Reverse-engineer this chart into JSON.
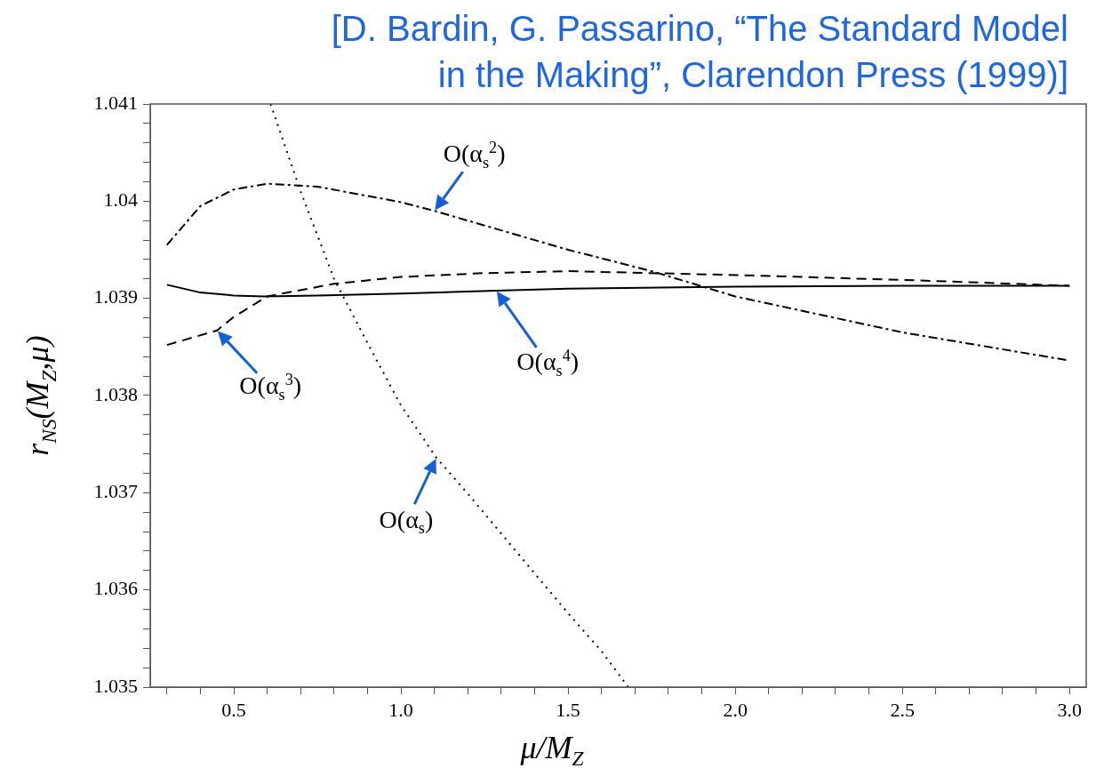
{
  "chart_data": {
    "type": "line",
    "title": "[D. Bardin, G. Passarino, “The Standard Model in the Making”, Clarendon Press (1999)]",
    "xlabel": "μ/M$_{Z}$",
    "ylabel": "r$_{NS}$(M$_{Z}$,μ)",
    "xlim": [
      0.25,
      3.05
    ],
    "ylim": [
      1.035,
      1.041
    ],
    "xticks": [
      {
        "value": 0.3,
        "label": null
      },
      {
        "value": 0.4,
        "label": null
      },
      {
        "value": 0.5,
        "label": "0.5"
      },
      {
        "value": 0.6,
        "label": null
      },
      {
        "value": 0.7,
        "label": null
      },
      {
        "value": 0.8,
        "label": null
      },
      {
        "value": 0.9,
        "label": null
      },
      {
        "value": 1,
        "label": "1.0"
      },
      {
        "value": 1.1,
        "label": null
      },
      {
        "value": 1.2,
        "label": null
      },
      {
        "value": 1.3,
        "label": null
      },
      {
        "value": 1.4,
        "label": null
      },
      {
        "value": 1.5,
        "label": "1.5"
      },
      {
        "value": 1.6,
        "label": null
      },
      {
        "value": 1.7,
        "label": null
      },
      {
        "value": 1.8,
        "label": null
      },
      {
        "value": 1.9,
        "label": null
      },
      {
        "value": 2,
        "label": "2.0"
      },
      {
        "value": 2.1,
        "label": null
      },
      {
        "value": 2.2,
        "label": null
      },
      {
        "value": 2.3,
        "label": null
      },
      {
        "value": 2.4,
        "label": null
      },
      {
        "value": 2.5,
        "label": "2.5"
      },
      {
        "value": 2.6,
        "label": null
      },
      {
        "value": 2.7,
        "label": null
      },
      {
        "value": 2.8,
        "label": null
      },
      {
        "value": 2.9,
        "label": null
      },
      {
        "value": 3,
        "label": "3.0"
      }
    ],
    "yticks": [
      1.035,
      {
        "value": 1.0352,
        "label": null
      },
      {
        "value": 1.0354,
        "label": null
      },
      {
        "value": 1.0356,
        "label": null
      },
      {
        "value": 1.0358,
        "label": null
      },
      1.036,
      {
        "value": 1.0362,
        "label": null
      },
      {
        "value": 1.0364,
        "label": null
      },
      {
        "value": 1.0366,
        "label": null
      },
      {
        "value": 1.0368,
        "label": null
      },
      1.037,
      {
        "value": 1.0372,
        "label": null
      },
      {
        "value": 1.0374,
        "label": null
      },
      {
        "value": 1.0376,
        "label": null
      },
      {
        "value": 1.0378,
        "label": null
      },
      1.038,
      {
        "value": 1.0382,
        "label": null
      },
      {
        "value": 1.0384,
        "label": null
      },
      {
        "value": 1.0386,
        "label": null
      },
      {
        "value": 1.0388,
        "label": null
      },
      1.039,
      {
        "value": 1.0392,
        "label": null
      },
      {
        "value": 1.0394,
        "label": null
      },
      {
        "value": 1.0396,
        "label": null
      },
      {
        "value": 1.0398,
        "label": null
      },
      1.04,
      {
        "value": 1.0402,
        "label": null
      },
      {
        "value": 1.0404,
        "label": null
      },
      {
        "value": 1.0406,
        "label": null
      },
      {
        "value": 1.0408,
        "label": null
      },
      1.041
    ],
    "grid": false,
    "legend": false,
    "marker": "none",
    "series": [
      {
        "color": "#000000",
        "line_style": "dotted",
        "x": [
          0.61,
          0.7,
          0.8,
          0.9,
          1.0,
          1.1,
          1.106,
          1.2,
          1.3,
          1.4,
          1.5,
          1.6,
          1.68
        ],
        "values": [
          1.041,
          1.0401,
          1.0392,
          1.03854,
          1.0379,
          1.03739,
          1.03736,
          1.03699,
          1.03658,
          1.03617,
          1.03576,
          1.03537,
          1.035
        ]
      },
      {
        "color": "#000000",
        "line_style": "dashdot",
        "x": [
          0.3,
          0.4,
          0.5,
          0.6,
          0.75,
          1.0,
          1.1,
          1.25,
          1.5,
          1.75,
          2.0,
          2.5,
          3.0
        ],
        "values": [
          1.03955,
          1.03995,
          1.04012,
          1.04018,
          1.04015,
          1.03999,
          1.0399,
          1.03975,
          1.0395,
          1.03928,
          1.03902,
          1.03865,
          1.03836
        ]
      },
      {
        "color": "#000000",
        "line_style": "dashed",
        "x": [
          0.3,
          0.45,
          0.5,
          0.6,
          0.8,
          1.0,
          1.25,
          1.5,
          2.0,
          2.5,
          3.0
        ],
        "values": [
          1.03852,
          1.03867,
          1.03881,
          1.03902,
          1.03915,
          1.03922,
          1.03926,
          1.03928,
          1.03924,
          1.03919,
          1.03913
        ]
      },
      {
        "color": "#000000",
        "line_style": "solid",
        "x": [
          0.3,
          0.4,
          0.5,
          0.59,
          0.75,
          1.0,
          1.285,
          1.5,
          2.0,
          2.5,
          3.0
        ],
        "values": [
          1.03914,
          1.03906,
          1.03903,
          1.03902,
          1.03903,
          1.03905,
          1.03908,
          1.0391,
          1.03912,
          1.03913,
          1.03913
        ]
      }
    ],
    "annotations": [
      {
        "text": "O(α$_{s}$$^{2}$)",
        "x": 1.1,
        "y": 1.0399
      },
      {
        "text": "O(α$_{s}$$^{3}$)",
        "x": 0.45,
        "y": 1.03867
      },
      {
        "text": "O(α$_{s}$$^{4}$)",
        "x": 1.285,
        "y": 1.03908
      },
      {
        "text": "O(α$_{s}$)",
        "x": 1.106,
        "y": 1.03736
      }
    ]
  }
}
